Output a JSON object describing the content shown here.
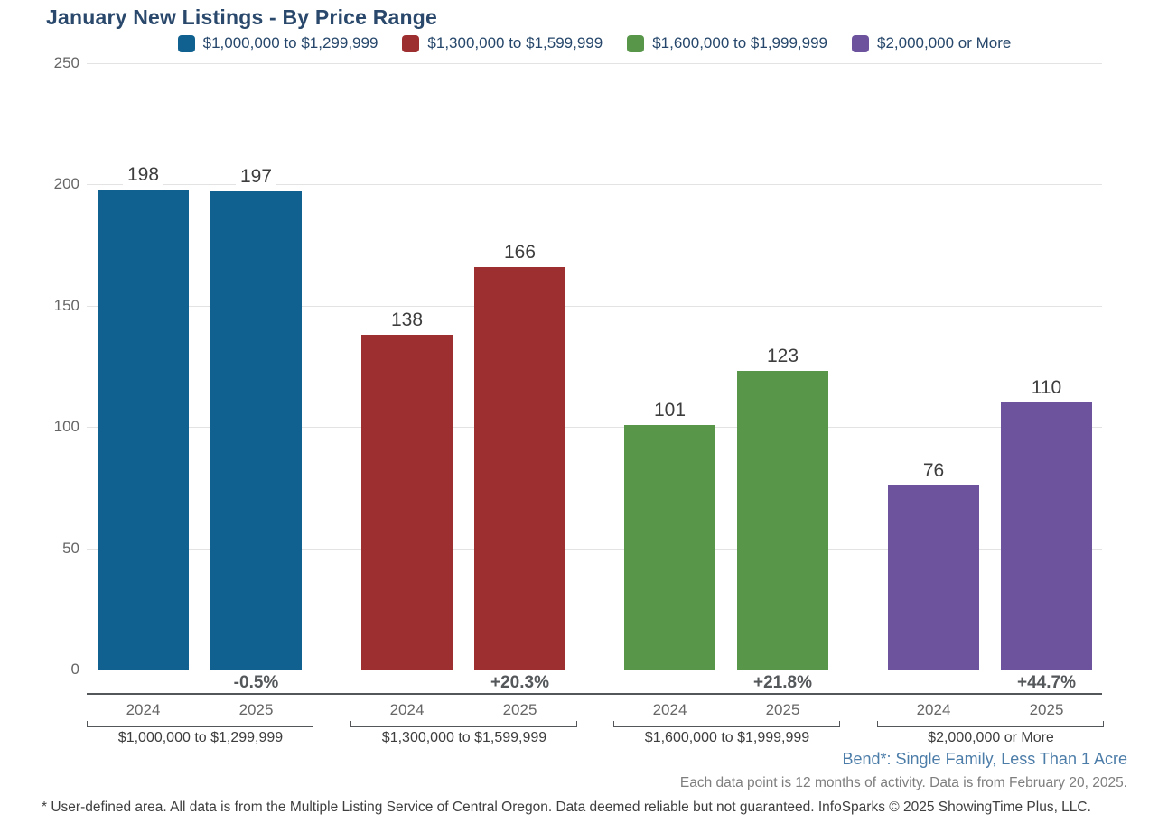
{
  "title": "January New Listings - By Price Range",
  "footnotes": {
    "area_line": "Bend*: Single Family, Less Than 1 Acre",
    "data_note": "Each data point is 12 months of activity. Data is from February 20, 2025.",
    "disclaimer": "* User-defined area. All data is from the Multiple Listing Service of Central Oregon. Data deemed reliable but not guaranteed. InfoSparks © 2025 ShowingTime Plus, LLC."
  },
  "colors": {
    "title": "#29486b",
    "legend_text": "#26476b",
    "axis_text": "#666666",
    "value_text": "#3d3d3d",
    "percent_text": "#55585b",
    "group_label_text": "#3d3d3d",
    "grid": "#e3e3e3",
    "axis_line": "#54575a",
    "area_line_text": "#4c7da9",
    "note_text": "#7e7e7e",
    "disclaimer_text": "#3f3f3f"
  },
  "chart_data": {
    "type": "bar",
    "title": "January New Listings - By Price Range",
    "categories": [
      "$1,000,000 to $1,299,999",
      "$1,300,000 to $1,599,999",
      "$1,600,000 to $1,999,999",
      "$2,000,000 or More"
    ],
    "series": [
      {
        "name": "2024",
        "values": [
          198,
          138,
          101,
          76
        ]
      },
      {
        "name": "2025",
        "values": [
          197,
          166,
          123,
          110
        ]
      }
    ],
    "percent_change": [
      "-0.5%",
      "+20.3%",
      "+21.8%",
      "+44.7%"
    ],
    "group_colors": [
      "#10618f",
      "#9e2f30",
      "#58964a",
      "#6d529e"
    ],
    "legend": [
      "$1,000,000 to $1,299,999",
      "$1,300,000 to $1,599,999",
      "$1,600,000 to $1,999,999",
      "$2,000,000 or More"
    ],
    "legend_position": "top",
    "xlabel": "",
    "ylabel": "",
    "ylim": [
      0,
      250
    ],
    "y_ticks": [
      0,
      50,
      100,
      150,
      200,
      250
    ],
    "grid": true
  }
}
